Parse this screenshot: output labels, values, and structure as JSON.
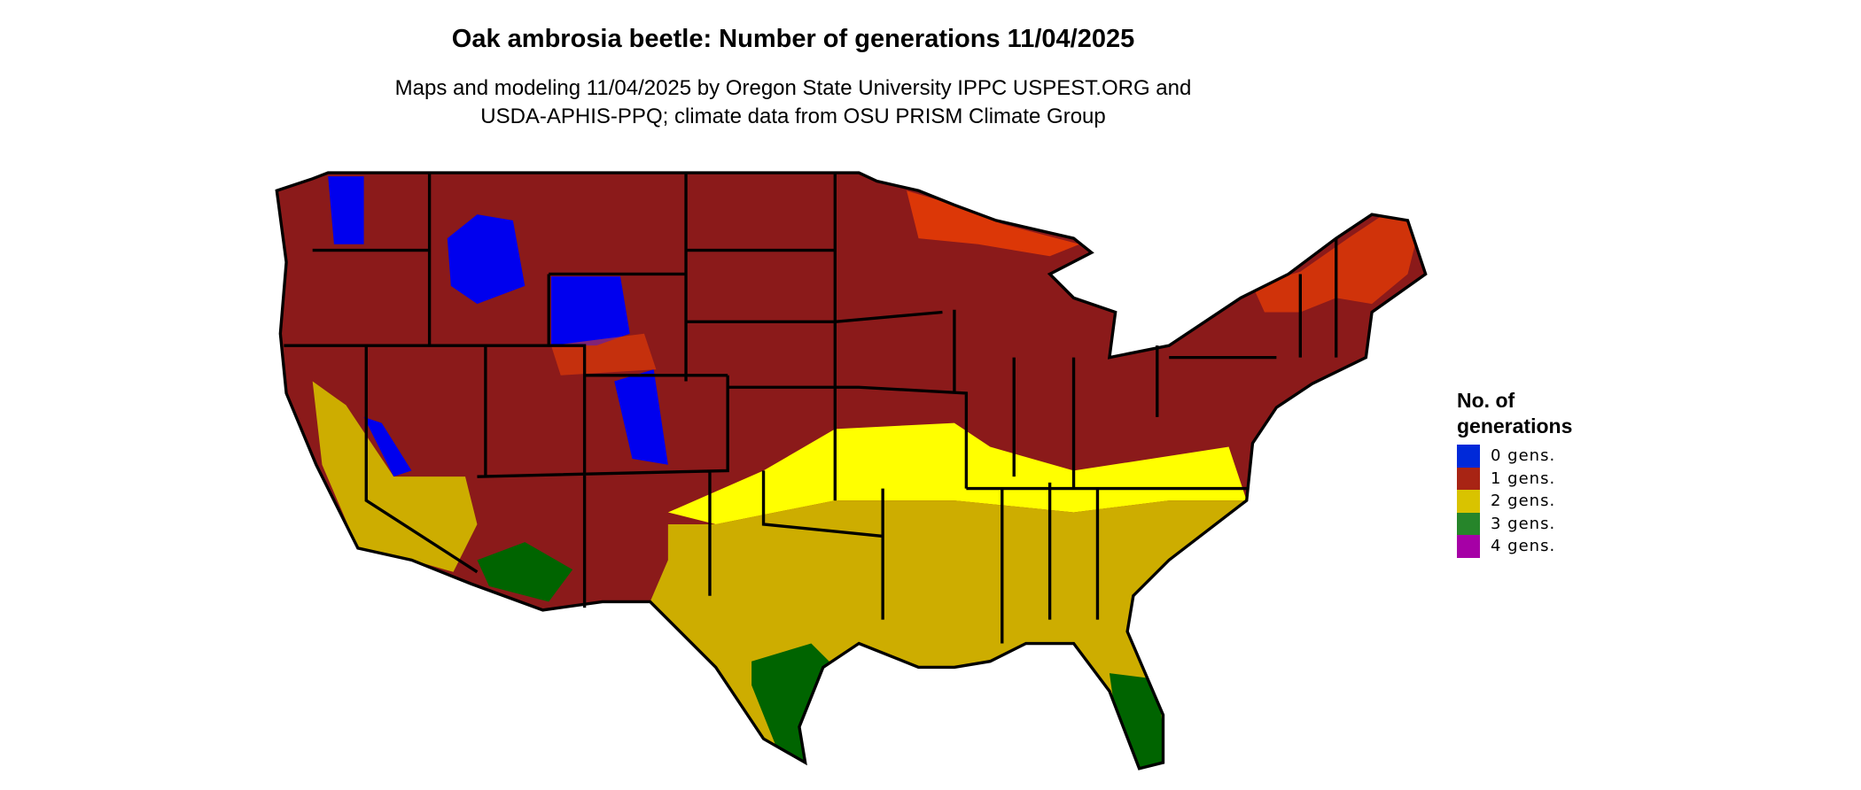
{
  "title": "Oak ambrosia beetle: Number of generations 11/04/2025",
  "subtitle_line1": "Maps and modeling 11/04/2025 by Oregon State University IPPC USPEST.ORG and",
  "subtitle_line2": "USDA-APHIS-PPQ; climate data from OSU PRISM Climate Group",
  "legend": {
    "title_line1": "No. of",
    "title_line2": "generations",
    "items": [
      {
        "label": "0 gens.",
        "color": "#0029d9"
      },
      {
        "label": "1 gens.",
        "color": "#a82414"
      },
      {
        "label": "2 gens.",
        "color": "#d9c300"
      },
      {
        "label": "3 gens.",
        "color": "#26852a"
      },
      {
        "label": "4 gens.",
        "color": "#a600a6"
      }
    ]
  },
  "map_colors": {
    "one_gen_dark": "#8b1a1a",
    "one_gen_light": "#ff4500",
    "two_gen": "#cdad00",
    "two_gen_light": "#ffff00",
    "three_gen": "#006400",
    "zero_gen": "#0000ee",
    "borders": "#000000"
  }
}
